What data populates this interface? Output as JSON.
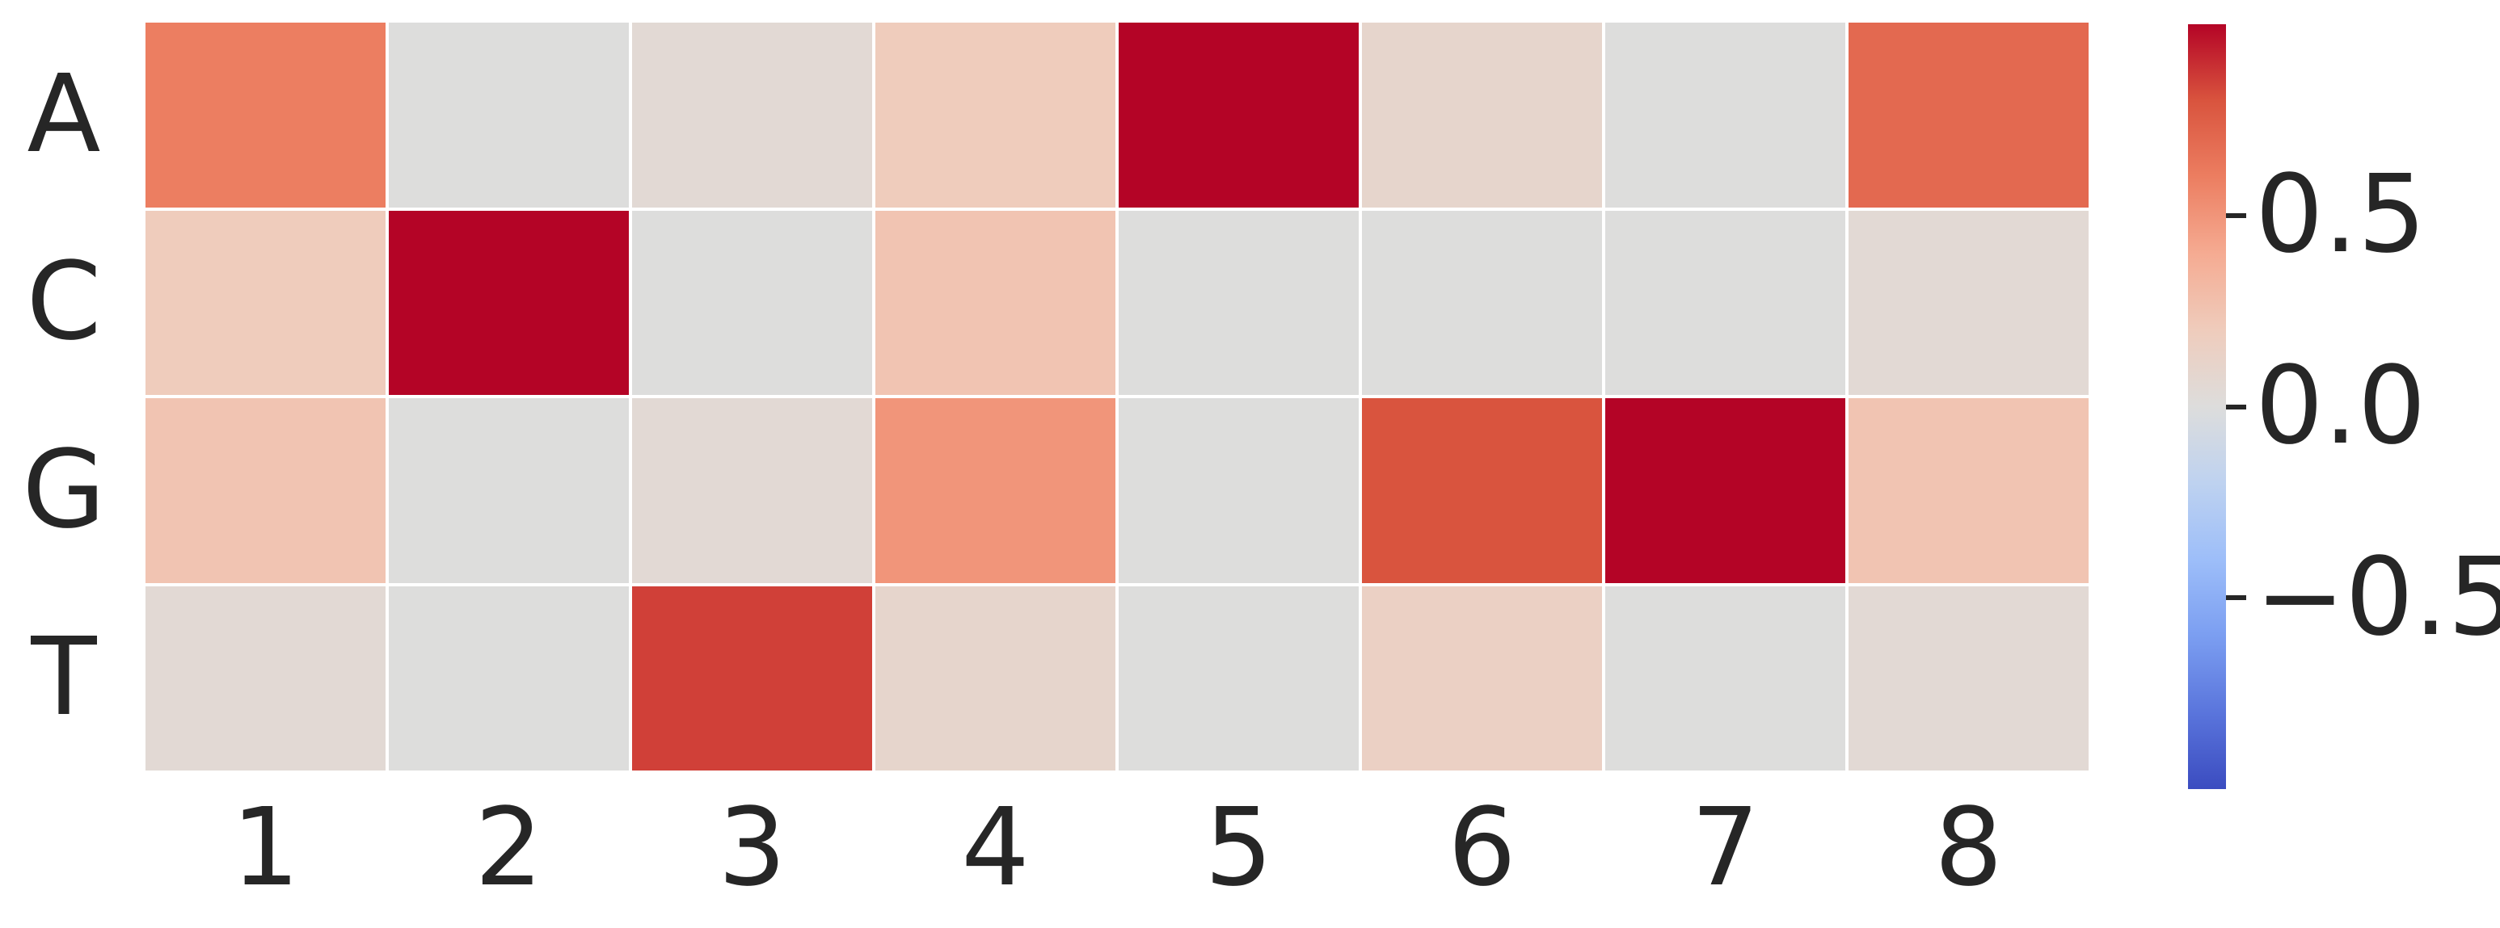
{
  "chart_data": {
    "type": "heatmap",
    "title": "",
    "rows": [
      "A",
      "C",
      "G",
      "T"
    ],
    "columns": [
      "1",
      "2",
      "3",
      "4",
      "5",
      "6",
      "7",
      "8"
    ],
    "values": [
      [
        0.6,
        0.0,
        0.05,
        0.2,
        1.0,
        0.1,
        0.0,
        0.7
      ],
      [
        0.2,
        1.0,
        0.0,
        0.25,
        0.0,
        0.0,
        0.0,
        0.05
      ],
      [
        0.25,
        0.0,
        0.05,
        0.5,
        0.0,
        0.8,
        1.0,
        0.25
      ],
      [
        0.05,
        0.0,
        0.85,
        0.1,
        0.0,
        0.15,
        0.0,
        0.05
      ]
    ],
    "vmin": -1.0,
    "vmax": 1.0,
    "grid": true,
    "grid_line_color": "#ffffff",
    "background_color": "#ffffff",
    "text_color": "#262626",
    "legend_position": "right-colorbar",
    "colormap": {
      "name": "coolwarm",
      "stops": [
        [
          0.0,
          [
            59,
            76,
            192
          ]
        ],
        [
          0.1,
          [
            90,
            117,
            220
          ]
        ],
        [
          0.2,
          [
            123,
            158,
            241
          ]
        ],
        [
          0.3,
          [
            157,
            190,
            249
          ]
        ],
        [
          0.4,
          [
            190,
            210,
            240
          ]
        ],
        [
          0.5,
          [
            221,
            221,
            220
          ]
        ],
        [
          0.6,
          [
            239,
            204,
            188
          ]
        ],
        [
          0.7,
          [
            245,
            171,
            146
          ]
        ],
        [
          0.8,
          [
            236,
            126,
            97
          ]
        ],
        [
          0.9,
          [
            217,
            84,
            62
          ]
        ],
        [
          1.0,
          [
            180,
            4,
            38
          ]
        ]
      ]
    },
    "colorbar": {
      "ticks": [
        {
          "label": "0.5",
          "value": 0.5
        },
        {
          "label": "0.0",
          "value": 0.0
        },
        {
          "label": "−0.5",
          "value": -0.5
        }
      ]
    }
  }
}
